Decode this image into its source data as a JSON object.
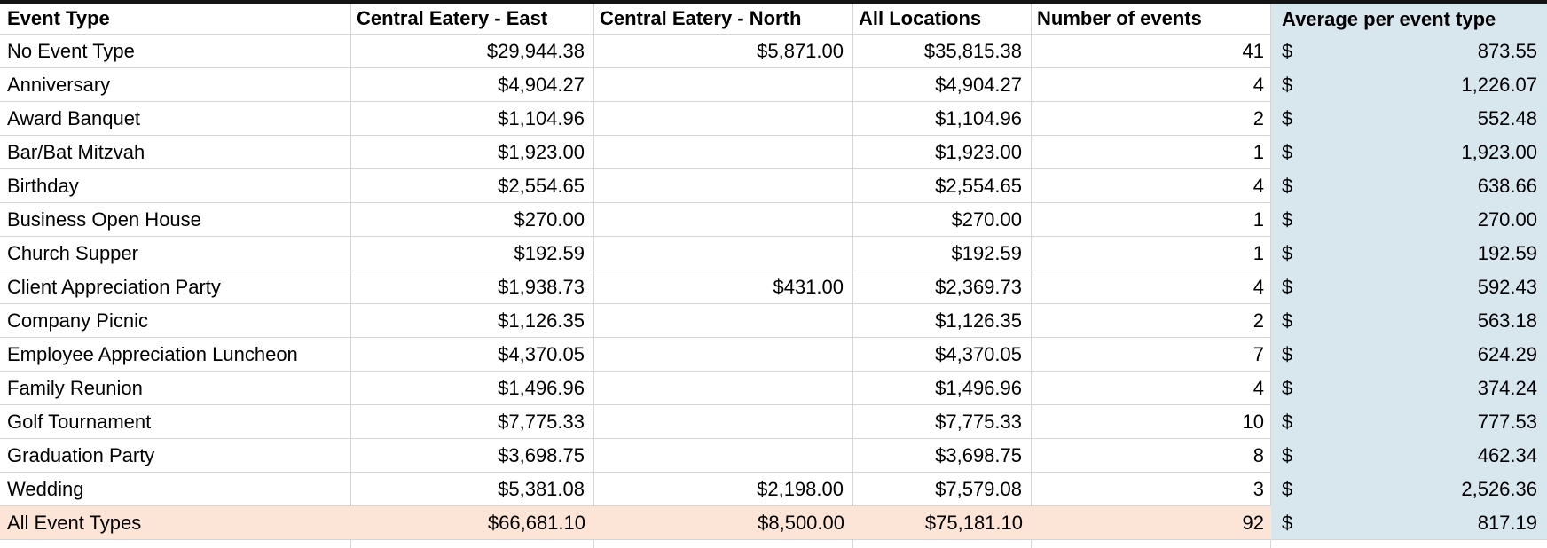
{
  "table": {
    "currency_symbol": "$",
    "columns": [
      "Event Type",
      "Central Eatery - East",
      "Central Eatery - North",
      "All Locations",
      "Number of events",
      "Average per event type"
    ],
    "rows": [
      {
        "event_type": "No Event Type",
        "east": "$29,944.38",
        "north": "$5,871.00",
        "all": "$35,815.38",
        "count": "41",
        "avg": "873.55"
      },
      {
        "event_type": "Anniversary",
        "east": "$4,904.27",
        "north": "",
        "all": "$4,904.27",
        "count": "4",
        "avg": "1,226.07"
      },
      {
        "event_type": "Award Banquet",
        "east": "$1,104.96",
        "north": "",
        "all": "$1,104.96",
        "count": "2",
        "avg": "552.48"
      },
      {
        "event_type": "Bar/Bat Mitzvah",
        "east": "$1,923.00",
        "north": "",
        "all": "$1,923.00",
        "count": "1",
        "avg": "1,923.00"
      },
      {
        "event_type": "Birthday",
        "east": "$2,554.65",
        "north": "",
        "all": "$2,554.65",
        "count": "4",
        "avg": "638.66"
      },
      {
        "event_type": "Business Open House",
        "east": "$270.00",
        "north": "",
        "all": "$270.00",
        "count": "1",
        "avg": "270.00"
      },
      {
        "event_type": "Church Supper",
        "east": "$192.59",
        "north": "",
        "all": "$192.59",
        "count": "1",
        "avg": "192.59"
      },
      {
        "event_type": "Client Appreciation Party",
        "east": "$1,938.73",
        "north": "$431.00",
        "all": "$2,369.73",
        "count": "4",
        "avg": "592.43"
      },
      {
        "event_type": "Company Picnic",
        "east": "$1,126.35",
        "north": "",
        "all": "$1,126.35",
        "count": "2",
        "avg": "563.18"
      },
      {
        "event_type": "Employee Appreciation Luncheon",
        "east": "$4,370.05",
        "north": "",
        "all": "$4,370.05",
        "count": "7",
        "avg": "624.29"
      },
      {
        "event_type": "Family Reunion",
        "east": "$1,496.96",
        "north": "",
        "all": "$1,496.96",
        "count": "4",
        "avg": "374.24"
      },
      {
        "event_type": "Golf Tournament",
        "east": "$7,775.33",
        "north": "",
        "all": "$7,775.33",
        "count": "10",
        "avg": "777.53"
      },
      {
        "event_type": "Graduation Party",
        "east": "$3,698.75",
        "north": "",
        "all": "$3,698.75",
        "count": "8",
        "avg": "462.34"
      },
      {
        "event_type": "Wedding",
        "east": "$5,381.08",
        "north": "$2,198.00",
        "all": "$7,579.08",
        "count": "3",
        "avg": "2,526.36"
      }
    ],
    "total_row": {
      "event_type": "All Event Types",
      "east": "$66,681.10",
      "north": "$8,500.00",
      "all": "$75,181.10",
      "count": "92",
      "avg": "817.19"
    }
  },
  "colors": {
    "average_column_fill": "#d8e6ee",
    "total_row_fill": "#fce4d6",
    "gridline": "#d5d5d5",
    "top_border": "#141414"
  }
}
